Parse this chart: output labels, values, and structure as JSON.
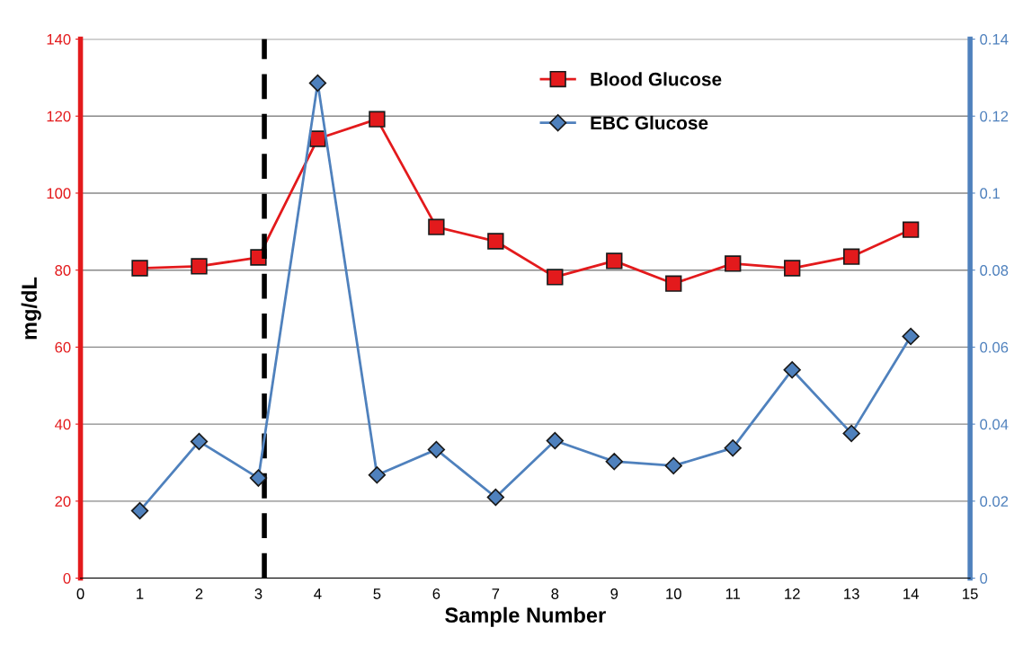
{
  "chart_data": {
    "type": "line",
    "xlabel": "Sample Number",
    "ylabel": "mg/dL",
    "x": [
      1,
      2,
      3,
      4,
      5,
      6,
      7,
      8,
      9,
      10,
      11,
      12,
      13,
      14
    ],
    "series": [
      {
        "name": "Blood Glucose",
        "color": "#e31a1c",
        "marker": "square",
        "values": [
          80.5,
          81,
          83.3,
          114.1,
          119.2,
          91.2,
          87.5,
          78.2,
          82.4,
          76.5,
          81.7,
          80.5,
          83.5,
          90.5
        ]
      },
      {
        "name": "EBC Glucose",
        "color": "#4f81bd",
        "marker": "diamond",
        "axis": "y2",
        "values": [
          0.0175,
          0.0355,
          0.026,
          0.1286,
          0.0268,
          0.0334,
          0.021,
          0.0357,
          0.0303,
          0.0292,
          0.0338,
          0.0541,
          0.0376,
          0.0628
        ]
      }
    ],
    "xlim": [
      0,
      15
    ],
    "xticks": [
      0,
      1,
      2,
      3,
      4,
      5,
      6,
      7,
      8,
      9,
      10,
      11,
      12,
      13,
      14,
      15
    ],
    "ylim": [
      0,
      140
    ],
    "yticks": [
      0,
      20,
      40,
      60,
      80,
      100,
      120,
      140
    ],
    "y2lim": [
      0,
      0.14
    ],
    "y2ticks": [
      0,
      0.02,
      0.04,
      0.06,
      0.08,
      0.1,
      0.12,
      0.14
    ],
    "ref_lines": [
      {
        "axis": "x",
        "value": 3.1,
        "color": "#000000",
        "line_style": "dashed"
      }
    ],
    "grid": "y",
    "legend": "top right",
    "line_style": "solid"
  }
}
